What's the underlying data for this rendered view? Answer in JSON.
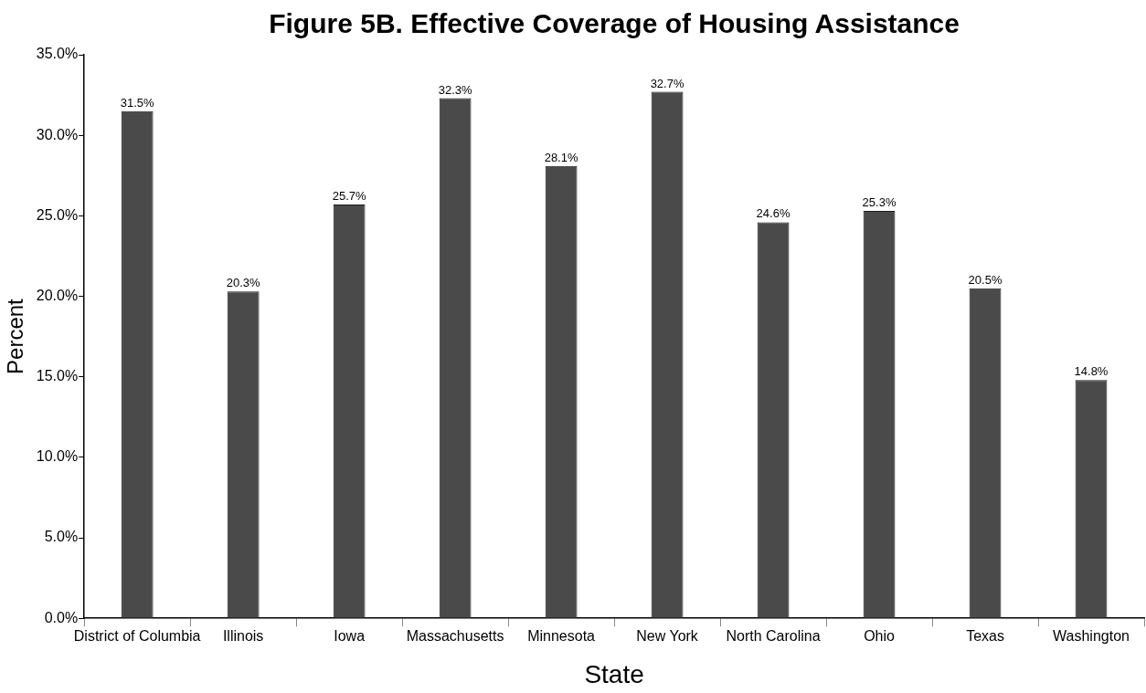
{
  "chart_data": {
    "type": "bar",
    "title": "Figure 5B. Effective Coverage of Housing Assistance",
    "xlabel": "State",
    "ylabel": "Percent",
    "categories": [
      "District of Columbia",
      "Illinois",
      "Iowa",
      "Massachusetts",
      "Minnesota",
      "New York",
      "North Carolina",
      "Ohio",
      "Texas",
      "Washington"
    ],
    "values": [
      31.5,
      20.3,
      25.7,
      32.3,
      28.1,
      32.7,
      24.6,
      25.3,
      20.5,
      14.8
    ],
    "color": "#4a4a4a",
    "value_labels": [
      "31.5%",
      "20.3%",
      "25.7%",
      "32.3%",
      "28.1%",
      "32.7%",
      "24.6%",
      "25.3%",
      "20.5%",
      "14.8%"
    ],
    "ylim": [
      0,
      35
    ],
    "yticks": [
      {
        "value": 0,
        "label": "0.0%"
      },
      {
        "value": 5,
        "label": "5.0%"
      },
      {
        "value": 10,
        "label": "10.0%"
      },
      {
        "value": 15,
        "label": "15.0%"
      },
      {
        "value": 20,
        "label": "20.0%"
      },
      {
        "value": 25,
        "label": "25.0%"
      },
      {
        "value": 30,
        "label": "30.0%"
      },
      {
        "value": 35,
        "label": "35.0%"
      }
    ]
  }
}
